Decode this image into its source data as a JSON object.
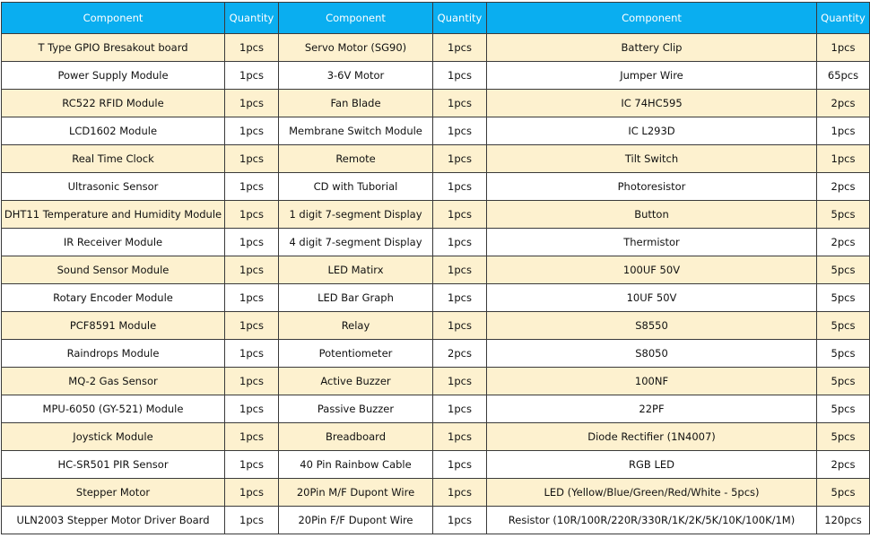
{
  "table": {
    "headers": [
      "Component",
      "Quantity",
      "Component",
      "Quantity",
      "Component",
      "Quantity"
    ],
    "rows": [
      [
        "T Type GPIO Bresakout board",
        "1pcs",
        "Servo Motor (SG90)",
        "1pcs",
        "Battery Clip",
        "1pcs"
      ],
      [
        "Power Supply Module",
        "1pcs",
        "3-6V Motor",
        "1pcs",
        "Jumper Wire",
        "65pcs"
      ],
      [
        "RC522 RFID Module",
        "1pcs",
        "Fan Blade",
        "1pcs",
        "IC 74HC595",
        "2pcs"
      ],
      [
        "LCD1602 Module",
        "1pcs",
        "Membrane Switch Module",
        "1pcs",
        "IC L293D",
        "1pcs"
      ],
      [
        "Real Time Clock",
        "1pcs",
        "Remote",
        "1pcs",
        "Tilt Switch",
        "1pcs"
      ],
      [
        "Ultrasonic Sensor",
        "1pcs",
        "CD with Tuborial",
        "1pcs",
        "Photoresistor",
        "2pcs"
      ],
      [
        "DHT11 Temperature and Humidity Module",
        "1pcs",
        "1 digit 7-segment Display",
        "1pcs",
        "Button",
        "5pcs"
      ],
      [
        "IR Receiver Module",
        "1pcs",
        "4 digit 7-segment Display",
        "1pcs",
        "Thermistor",
        "2pcs"
      ],
      [
        "Sound Sensor Module",
        "1pcs",
        "LED Matirx",
        "1pcs",
        "100UF 50V",
        "5pcs"
      ],
      [
        "Rotary Encoder Module",
        "1pcs",
        "LED Bar Graph",
        "1pcs",
        "10UF 50V",
        "5pcs"
      ],
      [
        "PCF8591 Module",
        "1pcs",
        "Relay",
        "1pcs",
        "S8550",
        "5pcs"
      ],
      [
        "Raindrops Module",
        "1pcs",
        "Potentiometer",
        "2pcs",
        "S8050",
        "5pcs"
      ],
      [
        "MQ-2 Gas Sensor",
        "1pcs",
        "Active Buzzer",
        "1pcs",
        "100NF",
        "5pcs"
      ],
      [
        "MPU-6050 (GY-521) Module",
        "1pcs",
        "Passive Buzzer",
        "1pcs",
        "22PF",
        "5pcs"
      ],
      [
        "Joystick Module",
        "1pcs",
        "Breadboard",
        "1pcs",
        "Diode Rectifier (1N4007)",
        "5pcs"
      ],
      [
        "HC-SR501 PIR Sensor",
        "1pcs",
        "40 Pin Rainbow Cable",
        "1pcs",
        "RGB LED",
        "2pcs"
      ],
      [
        "Stepper Motor",
        "1pcs",
        "20Pin M/F Dupont Wire",
        "1pcs",
        "LED (Yellow/Blue/Green/Red/White - 5pcs)",
        "5pcs"
      ],
      [
        "ULN2003 Stepper Motor Driver Board",
        "1pcs",
        "20Pin F/F Dupont Wire",
        "1pcs",
        "Resistor (10R/100R/220R/330R/1K/2K/5K/10K/100K/1M)",
        "120pcs"
      ]
    ]
  }
}
